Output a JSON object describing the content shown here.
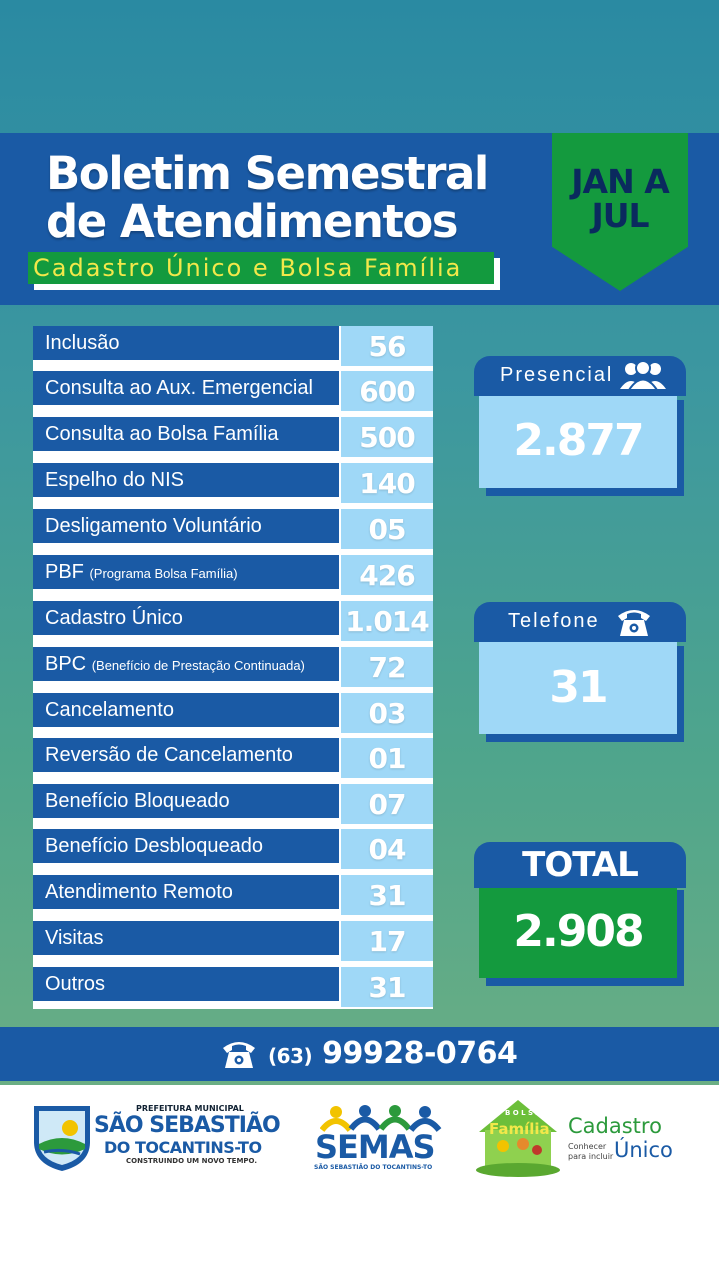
{
  "header": {
    "title_line1": "Boletim Semestral",
    "title_line2": "de Atendimentos",
    "subtitle": "Cadastro Único e Bolsa Família",
    "period_line1": "JAN A",
    "period_line2": "JUL"
  },
  "rows": [
    {
      "label": "Inclusão",
      "note": "",
      "value": "56"
    },
    {
      "label": "Consulta ao Aux. Emergencial",
      "note": "",
      "value": "600"
    },
    {
      "label": "Consulta ao Bolsa Família",
      "note": "",
      "value": "500"
    },
    {
      "label": "Espelho do NIS",
      "note": "",
      "value": "140"
    },
    {
      "label": "Desligamento Voluntário",
      "note": "",
      "value": "05"
    },
    {
      "label": "PBF",
      "note": "(Programa Bolsa Família)",
      "value": "426"
    },
    {
      "label": "Cadastro Único",
      "note": "",
      "value": "1.014"
    },
    {
      "label": "BPC",
      "note": "(Benefício de Prestação Continuada)",
      "value": "72"
    },
    {
      "label": "Cancelamento",
      "note": "",
      "value": "03"
    },
    {
      "label": "Reversão de Cancelamento",
      "note": "",
      "value": "01"
    },
    {
      "label": "Benefício Bloqueado",
      "note": "",
      "value": "07"
    },
    {
      "label": "Benefício Desbloqueado",
      "note": "",
      "value": "04"
    },
    {
      "label": "Atendimento Remoto",
      "note": "",
      "value": "31"
    },
    {
      "label": "Visitas",
      "note": "",
      "value": "17"
    },
    {
      "label": "Outros",
      "note": "",
      "value": "31"
    }
  ],
  "cards": {
    "presencial": {
      "label": "Presencial",
      "value": "2.877",
      "icon": "people-icon"
    },
    "telefone": {
      "label": "Telefone",
      "value": "31",
      "icon": "phone-icon"
    },
    "total": {
      "label": "TOTAL",
      "value": "2.908"
    }
  },
  "contact": {
    "ddd": "(63)",
    "number": "99928-0764",
    "icon": "phone-icon"
  },
  "logos": {
    "prefeitura": {
      "top": "PREFEITURA MUNICIPAL",
      "line1": "SÃO SEBASTIÃO",
      "line2": "DO TOCANTINS-TO",
      "tagline": "CONSTRUINDO UM NOVO TEMPO."
    },
    "semas": {
      "name": "SEMAS",
      "sub": "SÃO SEBASTIÃO DO TOCANTINS-TO"
    },
    "bolsa": {
      "top": "B O L S A",
      "name": "Família"
    },
    "cadastro": {
      "line1": "Cadastro",
      "line2": "Único",
      "tag1": "Conhecer",
      "tag2": "para incluir"
    }
  },
  "colors": {
    "blue": "#1a5aa5",
    "green": "#149a3e",
    "light_blue": "#9fd8f7",
    "yellow": "#f2e84a"
  }
}
